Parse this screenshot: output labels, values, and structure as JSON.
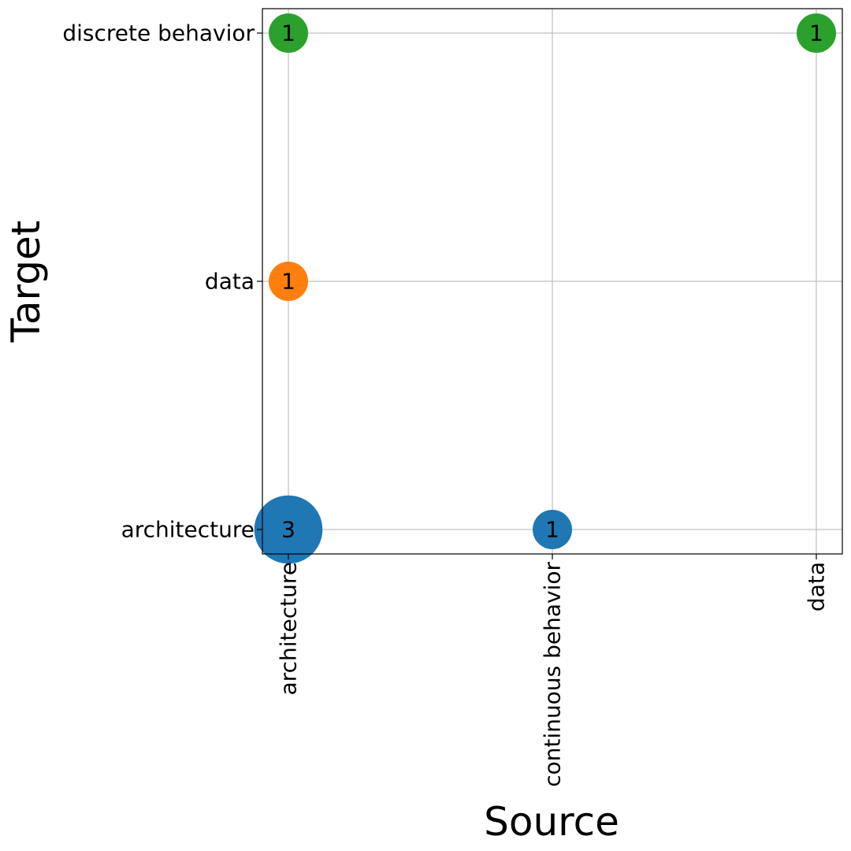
{
  "chart_data": {
    "type": "scatter",
    "xlabel": "Source",
    "ylabel": "Target",
    "x_categories": [
      "architecture",
      "continuous behavior",
      "data"
    ],
    "y_categories": [
      "architecture",
      "data",
      "discrete behavior"
    ],
    "grid": true,
    "points": [
      {
        "x": "architecture",
        "y": "architecture",
        "value": 3,
        "label": "3",
        "color": "#1f77b4"
      },
      {
        "x": "continuous behavior",
        "y": "architecture",
        "value": 1,
        "label": "1",
        "color": "#1f77b4"
      },
      {
        "x": "architecture",
        "y": "data",
        "value": 1,
        "label": "1",
        "color": "#ff7f0e"
      },
      {
        "x": "architecture",
        "y": "discrete behavior",
        "value": 1,
        "label": "1",
        "color": "#2ca02c"
      },
      {
        "x": "data",
        "y": "discrete behavior",
        "value": 1,
        "label": "1",
        "color": "#2ca02c"
      }
    ]
  }
}
